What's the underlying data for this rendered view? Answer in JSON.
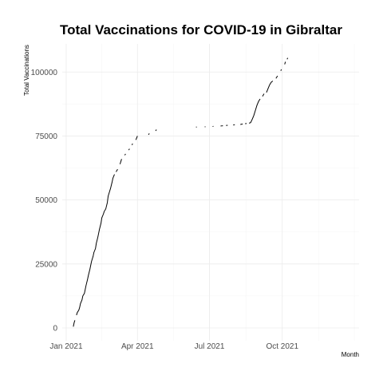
{
  "chart_data": {
    "type": "line",
    "title": "Total Vaccinations for COVID-19 in Gibraltar",
    "xlabel": "Month",
    "ylabel": "Total Vaccinations",
    "x_ticks": [
      {
        "label": "Jan 2021",
        "date": "2021-01-01"
      },
      {
        "label": "Apr 2021",
        "date": "2021-04-01"
      },
      {
        "label": "Jul 2021",
        "date": "2021-07-01"
      },
      {
        "label": "Oct 2021",
        "date": "2021-10-01"
      }
    ],
    "y_ticks": [
      {
        "label": "0",
        "value": 0
      },
      {
        "label": "25000",
        "value": 25000
      },
      {
        "label": "50000",
        "value": 50000
      },
      {
        "label": "75000",
        "value": 75000
      },
      {
        "label": "100000",
        "value": 100000
      }
    ],
    "xlim": [
      "2020-12-27",
      "2022-01-06"
    ],
    "ylim": [
      -5000,
      111000
    ],
    "grid": true,
    "series": [
      {
        "segments": [
          [
            [
              "2021-01-10",
              500
            ],
            [
              "2021-01-11",
              2000
            ],
            [
              "2021-01-12",
              3000
            ]
          ],
          [
            [
              "2021-01-14",
              5000
            ],
            [
              "2021-01-15",
              6000
            ],
            [
              "2021-01-17",
              7000
            ],
            [
              "2021-01-18",
              8000
            ],
            [
              "2021-01-19",
              9500
            ],
            [
              "2021-01-21",
              11000
            ],
            [
              "2021-01-22",
              12500
            ],
            [
              "2021-01-24",
              13500
            ],
            [
              "2021-01-25",
              15000
            ],
            [
              "2021-01-26",
              16500
            ],
            [
              "2021-01-28",
              19000
            ],
            [
              "2021-01-29",
              20500
            ],
            [
              "2021-01-31",
              23000
            ],
            [
              "2021-02-01",
              24500
            ],
            [
              "2021-02-02",
              26000
            ],
            [
              "2021-02-04",
              28000
            ],
            [
              "2021-02-05",
              29500
            ],
            [
              "2021-02-07",
              31000
            ],
            [
              "2021-02-08",
              33000
            ],
            [
              "2021-02-10",
              35500
            ],
            [
              "2021-02-11",
              37000
            ],
            [
              "2021-02-12",
              38500
            ],
            [
              "2021-02-14",
              41000
            ],
            [
              "2021-02-15",
              43000
            ],
            [
              "2021-02-17",
              44500
            ],
            [
              "2021-02-18",
              45500
            ],
            [
              "2021-02-20",
              46500
            ],
            [
              "2021-02-22",
              49000
            ],
            [
              "2021-02-23",
              51500
            ],
            [
              "2021-02-25",
              53500
            ],
            [
              "2021-02-26",
              54500
            ],
            [
              "2021-02-28",
              57000
            ],
            [
              "2021-03-01",
              58500
            ],
            [
              "2021-03-03",
              60000
            ]
          ],
          [
            [
              "2021-03-05",
              61000
            ],
            [
              "2021-03-07",
              62000
            ]
          ],
          [
            [
              "2021-03-10",
              64000
            ],
            [
              "2021-03-12",
              66000
            ]
          ],
          [
            [
              "2021-03-16",
              67500
            ],
            [
              "2021-03-17",
              68000
            ]
          ],
          [
            [
              "2021-03-21",
              69500
            ],
            [
              "2021-03-22",
              70000
            ]
          ],
          [
            [
              "2021-03-25",
              71500
            ],
            [
              "2021-03-26",
              72000
            ]
          ],
          [
            [
              "2021-03-30",
              73500
            ],
            [
              "2021-04-01",
              75000
            ]
          ],
          [
            [
              "2021-04-15",
              75500
            ],
            [
              "2021-04-16",
              76000
            ]
          ],
          [
            [
              "2021-04-24",
              77000
            ],
            [
              "2021-04-25",
              77500
            ]
          ],
          [
            [
              "2021-06-14",
              78500
            ],
            [
              "2021-06-15",
              78500
            ]
          ],
          [
            [
              "2021-06-25",
              78600
            ],
            [
              "2021-06-26",
              78600
            ]
          ],
          [
            [
              "2021-07-05",
              78700
            ],
            [
              "2021-07-06",
              78800
            ]
          ],
          [
            [
              "2021-07-15",
              78900
            ],
            [
              "2021-07-18",
              79000
            ]
          ],
          [
            [
              "2021-07-22",
              79100
            ],
            [
              "2021-07-24",
              79200
            ]
          ],
          [
            [
              "2021-07-31",
              79300
            ],
            [
              "2021-08-02",
              79400
            ]
          ],
          [
            [
              "2021-08-09",
              79500
            ],
            [
              "2021-08-12",
              79700
            ]
          ],
          [
            [
              "2021-08-15",
              79800
            ],
            [
              "2021-08-17",
              79900
            ]
          ],
          [
            [
              "2021-08-20",
              80000
            ],
            [
              "2021-08-22",
              80200
            ],
            [
              "2021-08-24",
              81500
            ],
            [
              "2021-08-26",
              83000
            ],
            [
              "2021-08-28",
              85000
            ],
            [
              "2021-08-30",
              87000
            ],
            [
              "2021-09-01",
              88500
            ],
            [
              "2021-09-03",
              89500
            ]
          ],
          [
            [
              "2021-09-06",
              90500
            ],
            [
              "2021-09-08",
              91500
            ]
          ],
          [
            [
              "2021-09-11",
              92000
            ],
            [
              "2021-09-13",
              93500
            ],
            [
              "2021-09-15",
              95000
            ],
            [
              "2021-09-17",
              96000
            ],
            [
              "2021-09-19",
              96500
            ]
          ],
          [
            [
              "2021-09-23",
              97500
            ],
            [
              "2021-09-25",
              98500
            ]
          ],
          [
            [
              "2021-09-29",
              100500
            ],
            [
              "2021-09-30",
              101000
            ]
          ],
          [
            [
              "2021-10-04",
              103000
            ],
            [
              "2021-10-05",
              104000
            ]
          ],
          [
            [
              "2021-10-07",
              105000
            ],
            [
              "2021-10-08",
              105500
            ]
          ]
        ]
      }
    ]
  }
}
